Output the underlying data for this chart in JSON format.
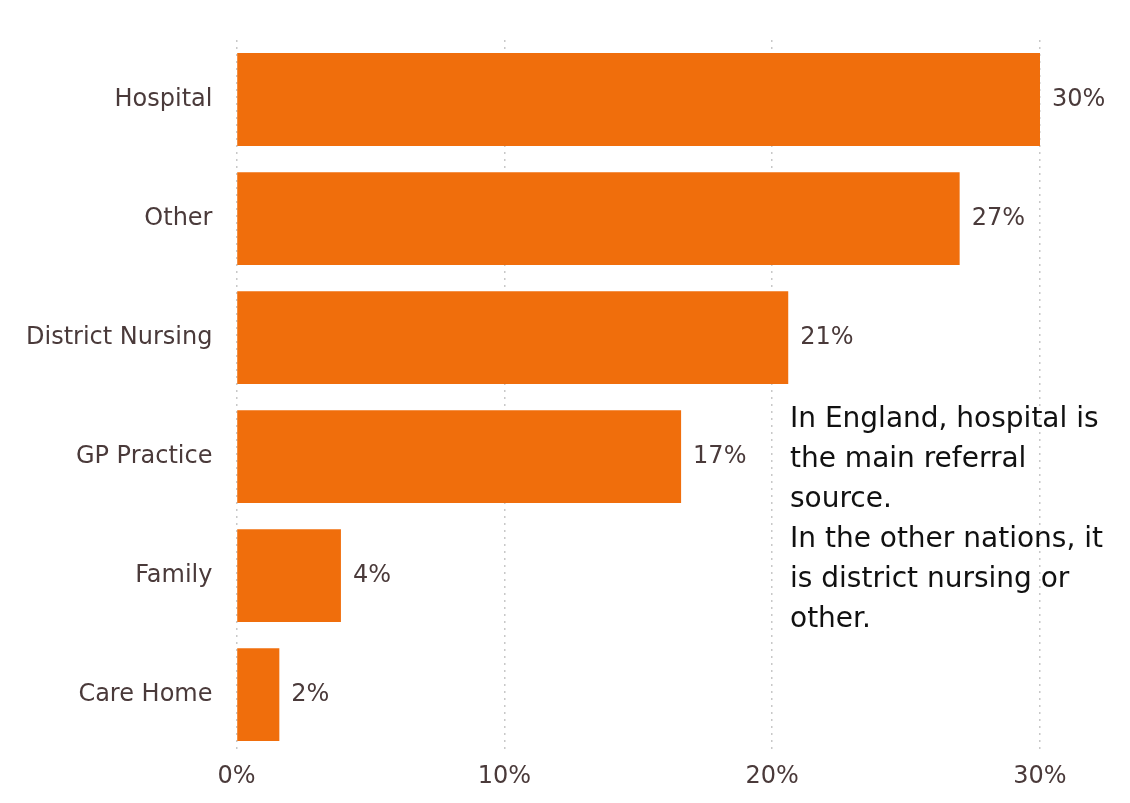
{
  "chart_data": {
    "type": "bar",
    "orientation": "horizontal",
    "categories": [
      "Hospital",
      "Other",
      "District Nursing",
      "GP Practice",
      "Family",
      "Care Home"
    ],
    "values": [
      30.0,
      27.0,
      20.6,
      16.6,
      3.9,
      1.6
    ],
    "value_labels": [
      "30%",
      "27%",
      "21%",
      "17%",
      "4%",
      "2%"
    ],
    "color": "#f06e0c",
    "xlim": [
      0,
      30
    ],
    "xticks": [
      {
        "value": 0,
        "label": "0%"
      },
      {
        "value": 10,
        "label": "10%"
      },
      {
        "value": 20,
        "label": "20%"
      },
      {
        "value": 30,
        "label": "30%"
      }
    ],
    "grid": "x",
    "legend": false,
    "annotations": [
      "In England, hospital is the main referral source.\nIn the other nations, it is district nursing or other."
    ]
  }
}
